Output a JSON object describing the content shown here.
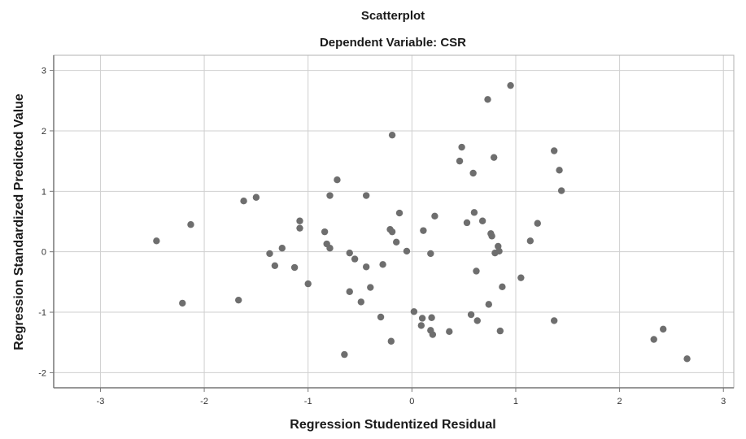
{
  "chart_data": {
    "type": "scatter",
    "title": "Scatterplot",
    "subtitle": "Dependent Variable: CSR",
    "xlabel": "Regression Studentized Residual",
    "ylabel": "Regression Standardized Predicted Value",
    "xlim": [
      -3.45,
      3.1
    ],
    "ylim": [
      -2.25,
      3.25
    ],
    "xticks": [
      -3,
      -2,
      -1,
      0,
      1,
      2,
      3
    ],
    "yticks": [
      -2,
      -1,
      0,
      1,
      2,
      3
    ],
    "x_tick_labels": [
      "-3",
      "-2",
      "-1",
      "0",
      "1",
      "2",
      "3"
    ],
    "y_tick_labels": [
      "-2",
      "-1",
      "0",
      "1",
      "2",
      "3"
    ],
    "grid": true,
    "colors": {
      "points": "#6e6e6e",
      "grid": "#cfcfcf",
      "axis": "#777777",
      "frame": "#b0b0b0"
    },
    "points": [
      {
        "x": -2.46,
        "y": 0.18
      },
      {
        "x": -2.13,
        "y": 0.45
      },
      {
        "x": -2.21,
        "y": -0.85
      },
      {
        "x": -1.62,
        "y": 0.84
      },
      {
        "x": -1.5,
        "y": 0.9
      },
      {
        "x": -1.67,
        "y": -0.8
      },
      {
        "x": -1.37,
        "y": -0.03
      },
      {
        "x": -1.32,
        "y": -0.23
      },
      {
        "x": -1.25,
        "y": 0.06
      },
      {
        "x": -1.13,
        "y": -0.26
      },
      {
        "x": -1.08,
        "y": 0.51
      },
      {
        "x": -1.08,
        "y": 0.39
      },
      {
        "x": -1.0,
        "y": -0.53
      },
      {
        "x": -0.84,
        "y": 0.33
      },
      {
        "x": -0.82,
        "y": 0.13
      },
      {
        "x": -0.79,
        "y": 0.06
      },
      {
        "x": -0.79,
        "y": 0.93
      },
      {
        "x": -0.72,
        "y": 1.19
      },
      {
        "x": -0.65,
        "y": -1.7
      },
      {
        "x": -0.6,
        "y": -0.02
      },
      {
        "x": -0.6,
        "y": -0.66
      },
      {
        "x": -0.55,
        "y": -0.12
      },
      {
        "x": -0.49,
        "y": -0.83
      },
      {
        "x": -0.44,
        "y": 0.93
      },
      {
        "x": -0.44,
        "y": -0.25
      },
      {
        "x": -0.4,
        "y": -0.59
      },
      {
        "x": -0.3,
        "y": -1.08
      },
      {
        "x": -0.28,
        "y": -0.21
      },
      {
        "x": -0.21,
        "y": 0.37
      },
      {
        "x": -0.19,
        "y": 0.33
      },
      {
        "x": -0.19,
        "y": 1.93
      },
      {
        "x": -0.2,
        "y": -1.48
      },
      {
        "x": -0.15,
        "y": 0.16
      },
      {
        "x": -0.12,
        "y": 0.64
      },
      {
        "x": -0.05,
        "y": 0.01
      },
      {
        "x": 0.02,
        "y": -0.99
      },
      {
        "x": 0.09,
        "y": -1.22
      },
      {
        "x": 0.1,
        "y": -1.1
      },
      {
        "x": 0.11,
        "y": 0.35
      },
      {
        "x": 0.18,
        "y": -1.3
      },
      {
        "x": 0.18,
        "y": -0.03
      },
      {
        "x": 0.19,
        "y": -1.09
      },
      {
        "x": 0.2,
        "y": -1.37
      },
      {
        "x": 0.22,
        "y": 0.59
      },
      {
        "x": 0.36,
        "y": -1.32
      },
      {
        "x": 0.46,
        "y": 1.5
      },
      {
        "x": 0.48,
        "y": 1.73
      },
      {
        "x": 0.53,
        "y": 0.48
      },
      {
        "x": 0.57,
        "y": -1.04
      },
      {
        "x": 0.59,
        "y": 1.3
      },
      {
        "x": 0.6,
        "y": 0.65
      },
      {
        "x": 0.62,
        "y": -0.32
      },
      {
        "x": 0.63,
        "y": -1.14
      },
      {
        "x": 0.68,
        "y": 0.51
      },
      {
        "x": 0.73,
        "y": 2.52
      },
      {
        "x": 0.74,
        "y": -0.87
      },
      {
        "x": 0.76,
        "y": 0.3
      },
      {
        "x": 0.77,
        "y": 0.26
      },
      {
        "x": 0.8,
        "y": -0.02
      },
      {
        "x": 0.79,
        "y": 1.56
      },
      {
        "x": 0.83,
        "y": 0.09
      },
      {
        "x": 0.84,
        "y": 0.01
      },
      {
        "x": 0.85,
        "y": -1.31
      },
      {
        "x": 0.87,
        "y": -0.58
      },
      {
        "x": 0.95,
        "y": 2.75
      },
      {
        "x": 1.05,
        "y": -0.43
      },
      {
        "x": 1.14,
        "y": 0.18
      },
      {
        "x": 1.21,
        "y": 0.47
      },
      {
        "x": 1.37,
        "y": -1.14
      },
      {
        "x": 1.37,
        "y": 1.67
      },
      {
        "x": 1.42,
        "y": 1.35
      },
      {
        "x": 1.44,
        "y": 1.01
      },
      {
        "x": 2.33,
        "y": -1.45
      },
      {
        "x": 2.42,
        "y": -1.28
      },
      {
        "x": 2.65,
        "y": -1.77
      }
    ]
  }
}
